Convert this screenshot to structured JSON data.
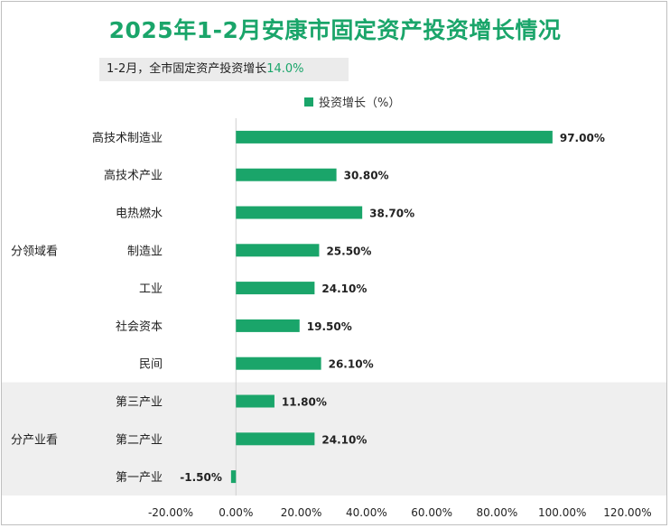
{
  "title": "2025年1-2月安康市固定资产投资增长情况",
  "subtitle": {
    "prefix": "1-2月，全市固定资产投资增长",
    "value": "14.0%"
  },
  "chart_data": {
    "type": "bar",
    "orientation": "horizontal",
    "legend": "投资增长（%）",
    "legend_position": "top-center",
    "categories": [
      "高技术制造业",
      "高技术产业",
      "电热燃水",
      "制造业",
      "工业",
      "社会资本",
      "民间",
      "第三产业",
      "第二产业",
      "第一产业"
    ],
    "values": [
      97.0,
      30.8,
      38.7,
      25.5,
      24.1,
      19.5,
      26.1,
      11.8,
      24.1,
      -1.5
    ],
    "value_labels": [
      "97.00%",
      "30.80%",
      "38.70%",
      "25.50%",
      "24.10%",
      "19.50%",
      "26.10%",
      "11.80%",
      "24.10%",
      "-1.50%"
    ],
    "groups": [
      {
        "label": "分领域看",
        "categories": [
          "高技术制造业",
          "高技术产业",
          "电热燃水",
          "制造业",
          "工业",
          "社会资本",
          "民间"
        ]
      },
      {
        "label": "分产业看",
        "categories": [
          "第三产业",
          "第二产业",
          "第一产业"
        ]
      }
    ],
    "xlim": [
      -20,
      120
    ],
    "xticks": [
      -20,
      0,
      20,
      40,
      60,
      80,
      100,
      120
    ],
    "xtick_labels": [
      "-20.00%",
      "0.00%",
      "20.00%",
      "40.00%",
      "60.00%",
      "80.00%",
      "100.00%",
      "120.00%"
    ],
    "colors": {
      "bar": "#1aa56a",
      "group_band": "#efefef",
      "axis": "#d0d0d0"
    }
  }
}
